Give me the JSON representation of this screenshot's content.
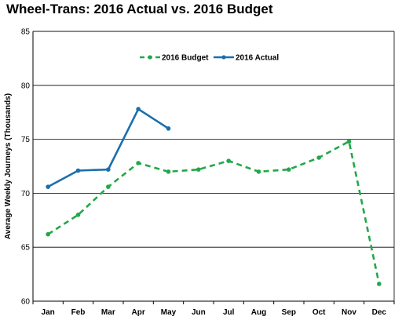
{
  "chart_data": {
    "type": "line",
    "title": "Wheel-Trans: 2016 Actual vs. 2016 Budget",
    "xlabel": "",
    "ylabel": "Average Weekly Journeys (Thousands)",
    "categories": [
      "Jan",
      "Feb",
      "Mar",
      "Apr",
      "May",
      "Jun",
      "Jul",
      "Aug",
      "Sep",
      "Oct",
      "Nov",
      "Dec"
    ],
    "ylim": [
      60,
      85
    ],
    "yticks": [
      60,
      65,
      70,
      75,
      80,
      85
    ],
    "grid": true,
    "legend_position": "top-center",
    "series": [
      {
        "name": "2016 Budget",
        "color": "#22a84a",
        "style": "dashed",
        "values": [
          66.2,
          68.0,
          70.6,
          72.8,
          72.0,
          72.2,
          73.0,
          72.0,
          72.2,
          73.3,
          74.8,
          61.6
        ]
      },
      {
        "name": "2016 Actual",
        "color": "#1a6fad",
        "style": "solid",
        "values": [
          70.6,
          72.1,
          72.2,
          77.8,
          76.0,
          null,
          null,
          null,
          null,
          null,
          null,
          null
        ]
      }
    ]
  }
}
